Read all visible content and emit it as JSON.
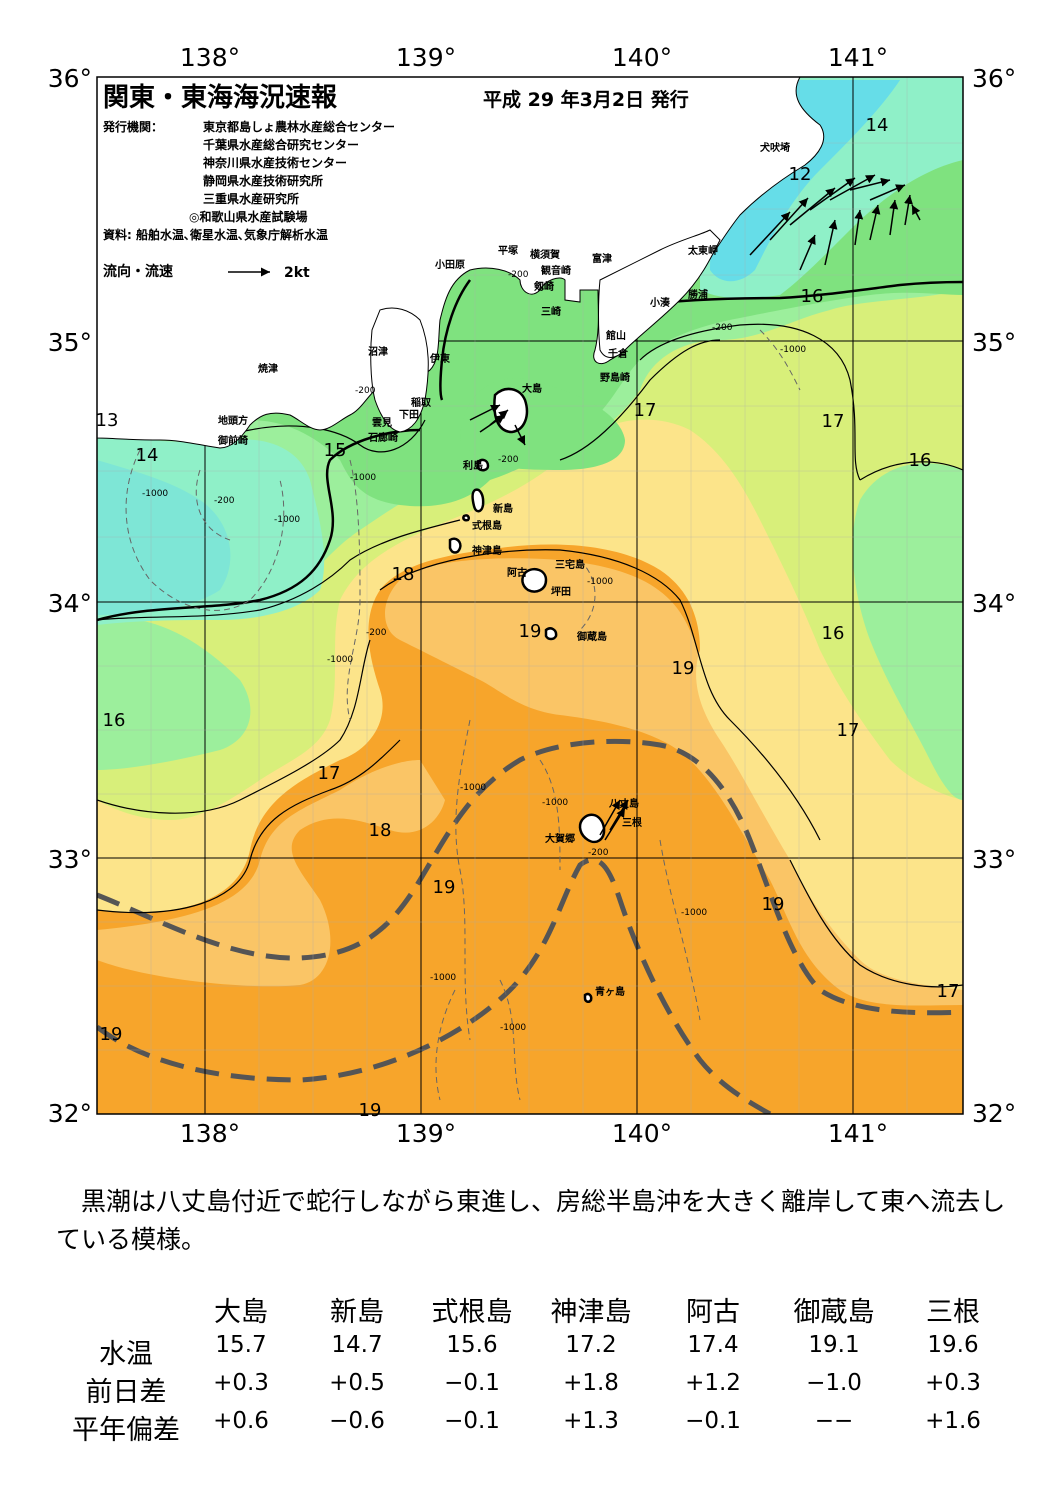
{
  "map": {
    "title": "関東・東海海況速報",
    "date": "平成 29 年3月2日 発行",
    "issuer_label": "発行機関：",
    "issuers": [
      "東京都島しょ農林水産総合センター",
      "千葉県水産総合研究センター",
      "神奈川県水産技術センター",
      "静岡県水産技術研究所",
      "三重県水産研究所",
      "◎和歌山県水産試験場"
    ],
    "sources": "資料: 船舶水温､衛星水温､気象庁解析水温",
    "legend_label": "流向・流速",
    "legend_scale": "2kt",
    "lon_labels": [
      "138°",
      "139°",
      "140°",
      "141°"
    ],
    "lat_labels": [
      "36°",
      "35°",
      "34°",
      "33°",
      "32°"
    ],
    "places": [
      "犬吠埼",
      "太東岬",
      "勝浦",
      "小湊",
      "富津",
      "横須賀",
      "観音崎",
      "剱崎",
      "三崎",
      "平塚",
      "小田原",
      "館山",
      "千倉",
      "野島崎",
      "沼津",
      "伊東",
      "焼津",
      "稲取",
      "下田",
      "雲見",
      "石廊崎",
      "地頭方",
      "御前崎",
      "大島",
      "利島",
      "新島",
      "式根島",
      "神津島",
      "三宅島",
      "阿古",
      "坪田",
      "御蔵島",
      "八丈島",
      "三根",
      "大賀郷",
      "青ヶ島"
    ],
    "isotherm_labels": [
      "14",
      "12",
      "16",
      "13",
      "14",
      "15",
      "17",
      "17",
      "16",
      "18",
      "19",
      "16",
      "19",
      "16",
      "17",
      "17",
      "18",
      "19",
      "19",
      "17",
      "19",
      "19"
    ],
    "depth_labels": [
      "-200",
      "-1000"
    ],
    "colors": {
      "t12": "#66dde8",
      "t13": "#7ee6d6",
      "t14": "#8ff0c8",
      "t15": "#9cef9c",
      "t16": "#7fe27f",
      "t17": "#d8ef7a",
      "t18": "#fce48a",
      "t19": "#fac566",
      "t20": "#f7a52b",
      "kuroshio_axis": "#555555"
    }
  },
  "summary": "黒潮は八丈島付近で蛇行しながら東進し、房総半島沖を大きく離岸して東へ流去している模様。",
  "table": {
    "columns": [
      "大島",
      "新島",
      "式根島",
      "神津島",
      "阿古",
      "御蔵島",
      "三根"
    ],
    "rows": [
      {
        "label": "水温",
        "values": [
          "15.7",
          "14.7",
          "15.6",
          "17.2",
          "17.4",
          "19.1",
          "19.6"
        ]
      },
      {
        "label": "前日差",
        "values": [
          "+0.3",
          "+0.5",
          "−0.1",
          "+1.8",
          "+1.2",
          "−1.0",
          "+0.3"
        ]
      },
      {
        "label": "平年偏差",
        "values": [
          "+0.6",
          "−0.6",
          "−0.1",
          "+1.3",
          "−0.1",
          "−−",
          "+1.6"
        ]
      }
    ]
  }
}
